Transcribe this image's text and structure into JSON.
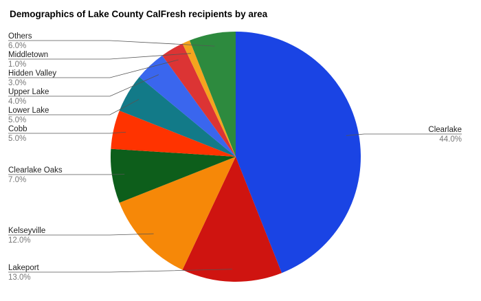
{
  "chart_data": {
    "type": "pie",
    "title": "Demographics of Lake County CalFresh recipients by area",
    "start_angle": "top, clockwise",
    "legend": "none (labels with leader lines)",
    "slices": [
      {
        "label": "Clearlake",
        "value": 44.0,
        "display": "44.0%",
        "color": "#1a44e4"
      },
      {
        "label": "Lakeport",
        "value": 13.0,
        "display": "13.0%",
        "color": "#cf1410"
      },
      {
        "label": "Kelseyville",
        "value": 12.0,
        "display": "12.0%",
        "color": "#f68808"
      },
      {
        "label": "Clearlake Oaks",
        "value": 7.0,
        "display": "7.0%",
        "color": "#0d5e1b"
      },
      {
        "label": "Cobb",
        "value": 5.0,
        "display": "5.0%",
        "color": "#ff3300"
      },
      {
        "label": "Lower Lake",
        "value": 5.0,
        "display": "5.0%",
        "color": "#127a88"
      },
      {
        "label": "Upper Lake",
        "value": 4.0,
        "display": "4.0%",
        "color": "#3a66ee"
      },
      {
        "label": "Hidden Valley",
        "value": 3.0,
        "display": "3.0%",
        "color": "#dc3434"
      },
      {
        "label": "Middletown",
        "value": 1.0,
        "display": "1.0%",
        "color": "#f4a41e"
      },
      {
        "label": "Others",
        "value": 6.0,
        "display": "6.0%",
        "color": "#2d8a3e"
      }
    ]
  }
}
